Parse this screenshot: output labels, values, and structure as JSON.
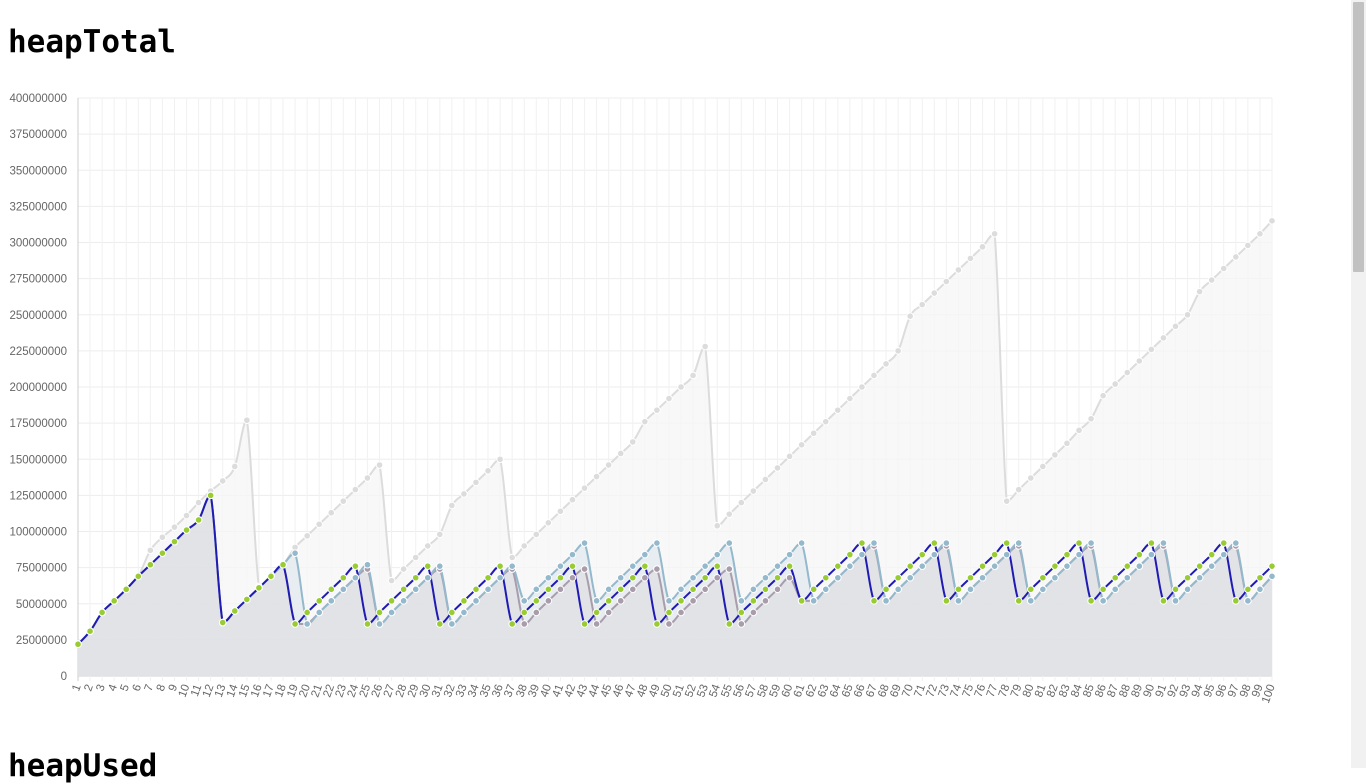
{
  "page": {
    "title": "heapTotal",
    "next_title": "heapUsed"
  },
  "chart_data": {
    "type": "line",
    "title": "heapTotal",
    "xlabel": "",
    "ylabel": "",
    "ylim": [
      0,
      400000000
    ],
    "y_ticks": [
      0,
      25000000,
      50000000,
      75000000,
      100000000,
      125000000,
      150000000,
      175000000,
      200000000,
      225000000,
      250000000,
      275000000,
      300000000,
      325000000,
      350000000,
      375000000,
      400000000
    ],
    "x_ticks": [
      "1",
      "2",
      "3",
      "4",
      "5",
      "6",
      "7",
      "8",
      "9",
      "10",
      "11",
      "12",
      "13",
      "14",
      "15",
      "16",
      "17",
      "18",
      "19",
      "20",
      "21",
      "22",
      "23",
      "24",
      "25",
      "26",
      "27",
      "28",
      "29",
      "30",
      "31",
      "32",
      "33",
      "34",
      "35",
      "36",
      "37",
      "38",
      "39",
      "40",
      "41",
      "42",
      "43",
      "44",
      "45",
      "46",
      "47",
      "48",
      "49",
      "50",
      "51",
      "52",
      "53",
      "54",
      "55",
      "56",
      "57",
      "58",
      "59",
      "60",
      "61",
      "62",
      "63",
      "64",
      "65",
      "66",
      "67",
      "68",
      "69",
      "70",
      "71",
      "72",
      "73",
      "74",
      "75",
      "76",
      "77",
      "78",
      "79",
      "80",
      "81",
      "82",
      "83",
      "84",
      "85",
      "86",
      "87",
      "88",
      "89",
      "90",
      "91",
      "92",
      "93",
      "94",
      "95",
      "96",
      "97",
      "98",
      "99",
      "100"
    ],
    "grid": true,
    "series": [
      {
        "color": "#dcdcdc",
        "fill": "#f6f6f6",
        "values": [
          22000000,
          31000000,
          44000000,
          52000000,
          60000000,
          69000000,
          87000000,
          96000000,
          103000000,
          111000000,
          120000000,
          128000000,
          135000000,
          145000000,
          177000000,
          62000000,
          70000000,
          77000000,
          89000000,
          97000000,
          105000000,
          113000000,
          121000000,
          129000000,
          137000000,
          146000000,
          66000000,
          74000000,
          82000000,
          90000000,
          98000000,
          118000000,
          126000000,
          134000000,
          142000000,
          150000000,
          82000000,
          90000000,
          98000000,
          106000000,
          114000000,
          122000000,
          130000000,
          138000000,
          146000000,
          154000000,
          162000000,
          176000000,
          184000000,
          192000000,
          200000000,
          208000000,
          228000000,
          104000000,
          112000000,
          120000000,
          128000000,
          136000000,
          144000000,
          152000000,
          160000000,
          168000000,
          176000000,
          184000000,
          192000000,
          200000000,
          208000000,
          216000000,
          225000000,
          249000000,
          257000000,
          265000000,
          273000000,
          281000000,
          289000000,
          297000000,
          306000000,
          121000000,
          129000000,
          137000000,
          145000000,
          153000000,
          161000000,
          170000000,
          178000000,
          194000000,
          202000000,
          210000000,
          218000000,
          226000000,
          234000000,
          242000000,
          250000000,
          266000000,
          274000000,
          282000000,
          290000000,
          298000000,
          306000000,
          315000000
        ]
      },
      {
        "color": "#a99cab",
        "fill": "#d6bfc4",
        "values": [
          22000000,
          31000000,
          44000000,
          52000000,
          60000000,
          69000000,
          77000000,
          85000000,
          93000000,
          101000000,
          108000000,
          125000000,
          37000000,
          45000000,
          53000000,
          61000000,
          69000000,
          77000000,
          36000000,
          36000000,
          44000000,
          52000000,
          60000000,
          68000000,
          74000000,
          36000000,
          44000000,
          52000000,
          60000000,
          68000000,
          74000000,
          36000000,
          44000000,
          52000000,
          60000000,
          68000000,
          74000000,
          36000000,
          44000000,
          52000000,
          60000000,
          68000000,
          74000000,
          36000000,
          44000000,
          52000000,
          60000000,
          68000000,
          74000000,
          36000000,
          44000000,
          52000000,
          60000000,
          68000000,
          74000000,
          36000000,
          44000000,
          52000000,
          60000000,
          68000000,
          52000000,
          52000000,
          60000000,
          68000000,
          76000000,
          84000000,
          90000000,
          52000000,
          60000000,
          68000000,
          76000000,
          84000000,
          90000000,
          52000000,
          60000000,
          68000000,
          76000000,
          84000000,
          90000000,
          52000000,
          60000000,
          68000000,
          76000000,
          84000000,
          90000000,
          52000000,
          60000000,
          68000000,
          76000000,
          84000000,
          90000000,
          52000000,
          60000000,
          68000000,
          76000000,
          84000000,
          90000000,
          52000000,
          60000000,
          69000000
        ]
      },
      {
        "color": "#94b8cc",
        "fill": "#e2eaee",
        "values": [
          22000000,
          31000000,
          44000000,
          52000000,
          60000000,
          69000000,
          77000000,
          85000000,
          93000000,
          101000000,
          108000000,
          125000000,
          37000000,
          45000000,
          53000000,
          61000000,
          69000000,
          77000000,
          85000000,
          36000000,
          44000000,
          52000000,
          60000000,
          68000000,
          77000000,
          36000000,
          44000000,
          52000000,
          60000000,
          68000000,
          76000000,
          36000000,
          44000000,
          52000000,
          60000000,
          68000000,
          76000000,
          52000000,
          60000000,
          68000000,
          76000000,
          84000000,
          92000000,
          52000000,
          60000000,
          68000000,
          76000000,
          84000000,
          92000000,
          52000000,
          60000000,
          68000000,
          76000000,
          84000000,
          92000000,
          52000000,
          60000000,
          68000000,
          76000000,
          84000000,
          92000000,
          52000000,
          60000000,
          68000000,
          76000000,
          84000000,
          92000000,
          52000000,
          60000000,
          68000000,
          76000000,
          84000000,
          92000000,
          52000000,
          60000000,
          68000000,
          76000000,
          84000000,
          92000000,
          52000000,
          60000000,
          68000000,
          76000000,
          84000000,
          92000000,
          52000000,
          60000000,
          68000000,
          76000000,
          84000000,
          92000000,
          52000000,
          60000000,
          68000000,
          76000000,
          84000000,
          92000000,
          52000000,
          60000000,
          69000000
        ]
      },
      {
        "color": "#1f1bb3",
        "fill": "none",
        "point_color": "#99cc33",
        "values": [
          22000000,
          31000000,
          44000000,
          52000000,
          60000000,
          69000000,
          77000000,
          85000000,
          93000000,
          101000000,
          108000000,
          125000000,
          37000000,
          45000000,
          53000000,
          61000000,
          69000000,
          77000000,
          36000000,
          44000000,
          52000000,
          60000000,
          68000000,
          76000000,
          36000000,
          44000000,
          52000000,
          60000000,
          68000000,
          76000000,
          36000000,
          44000000,
          52000000,
          60000000,
          68000000,
          76000000,
          36000000,
          44000000,
          52000000,
          60000000,
          68000000,
          76000000,
          36000000,
          44000000,
          52000000,
          60000000,
          68000000,
          76000000,
          36000000,
          44000000,
          52000000,
          60000000,
          68000000,
          76000000,
          36000000,
          44000000,
          52000000,
          60000000,
          68000000,
          76000000,
          52000000,
          60000000,
          68000000,
          76000000,
          84000000,
          92000000,
          52000000,
          60000000,
          68000000,
          76000000,
          84000000,
          92000000,
          52000000,
          60000000,
          68000000,
          76000000,
          84000000,
          92000000,
          52000000,
          60000000,
          68000000,
          76000000,
          84000000,
          92000000,
          52000000,
          60000000,
          68000000,
          76000000,
          84000000,
          92000000,
          52000000,
          60000000,
          68000000,
          76000000,
          84000000,
          92000000,
          52000000,
          60000000,
          68000000,
          76000000
        ]
      }
    ]
  }
}
